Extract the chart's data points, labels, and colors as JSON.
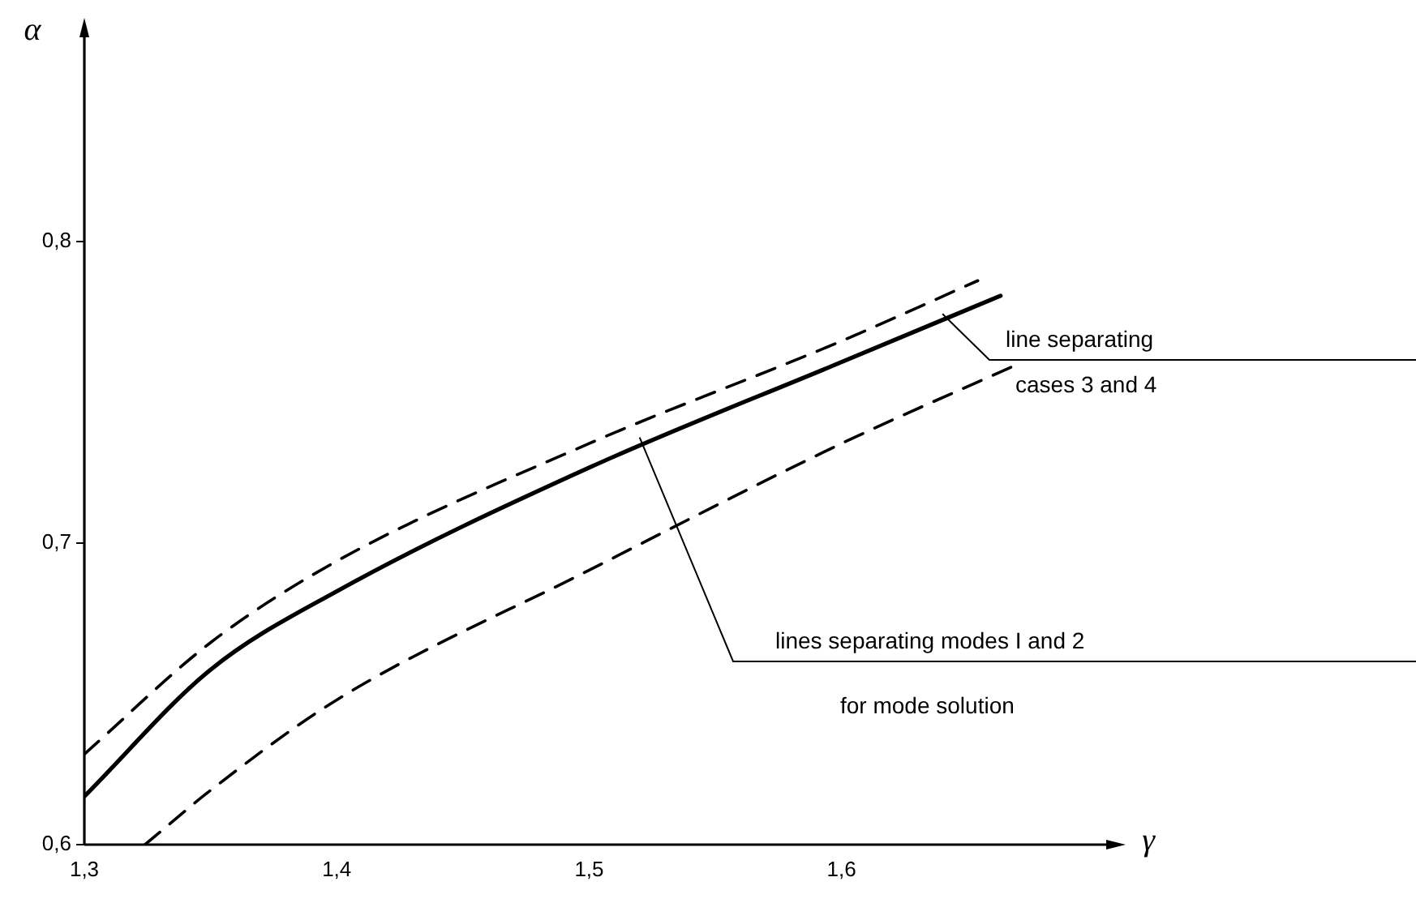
{
  "chart_data": {
    "type": "line",
    "xlabel": "γ",
    "ylabel": "α",
    "xlim": [
      1.3,
      1.71
    ],
    "ylim": [
      0.6,
      0.872
    ],
    "xticks": [
      {
        "value": 1.3,
        "label": "1,3"
      },
      {
        "value": 1.4,
        "label": "1,4"
      },
      {
        "value": 1.5,
        "label": "1,5"
      },
      {
        "value": 1.6,
        "label": "1,6"
      }
    ],
    "yticks": [
      {
        "value": 0.6,
        "label": "0,6"
      },
      {
        "value": 0.7,
        "label": "0,7"
      },
      {
        "value": 0.8,
        "label": "0,8"
      }
    ],
    "grid": false,
    "legend": false,
    "marker": "none",
    "series": [
      {
        "color": "#000000",
        "line_style": "solid",
        "x": [
          1.3,
          1.35,
          1.4,
          1.5,
          1.6,
          1.663
        ],
        "values": [
          0.616,
          0.658,
          0.684,
          0.725,
          0.76,
          0.782
        ]
      },
      {
        "color": "#000000",
        "line_style": "dashed",
        "x": [
          1.3,
          1.35,
          1.4,
          1.5,
          1.6,
          1.654
        ],
        "values": [
          0.63,
          0.667,
          0.694,
          0.733,
          0.767,
          0.787
        ]
      },
      {
        "color": "#000000",
        "line_style": "dashed",
        "x": [
          1.324,
          1.35,
          1.4,
          1.5,
          1.6,
          1.669
        ],
        "values": [
          0.6,
          0.618,
          0.648,
          0.691,
          0.733,
          0.759
        ]
      }
    ],
    "annotations": [
      {
        "text": "line separating cases 3 and 4",
        "x": 1.64,
        "y": 0.776
      },
      {
        "text": "lines separating modes I and 2",
        "x": 1.52,
        "y": 0.735
      },
      "for mode solution"
    ]
  }
}
